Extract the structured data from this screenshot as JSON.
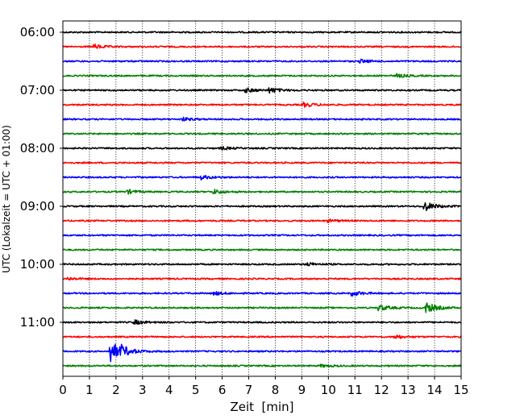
{
  "chart_data": {
    "type": "line",
    "title": "",
    "xlabel": "Zeit  [min]",
    "ylabel": "UTC (Lokalzeit = UTC + 01:00)",
    "xlim": [
      0,
      15
    ],
    "x_ticks": [
      "0",
      "1",
      "2",
      "3",
      "4",
      "5",
      "6",
      "7",
      "8",
      "9",
      "10",
      "11",
      "12",
      "13",
      "14",
      "15"
    ],
    "y_tick_labels": [
      "06:00",
      "07:00",
      "08:00",
      "09:00",
      "10:00",
      "11:00"
    ],
    "grid": "vertical dotted at each minute",
    "trace_interval_min": 15,
    "trace_color_cycle": [
      "#000000",
      "#ff0000",
      "#0000ff",
      "#008000"
    ],
    "traces": [
      {
        "start": "06:00",
        "color": "#000000",
        "events": []
      },
      {
        "start": "06:15",
        "color": "#ff0000",
        "events": [
          {
            "t": 1.2,
            "amp": 0.5
          }
        ]
      },
      {
        "start": "06:30",
        "color": "#0000ff",
        "events": [
          {
            "t": 11.2,
            "amp": 0.4
          }
        ]
      },
      {
        "start": "06:45",
        "color": "#008000",
        "events": [
          {
            "t": 12.6,
            "amp": 0.4
          }
        ]
      },
      {
        "start": "07:00",
        "color": "#000000",
        "events": [
          {
            "t": 6.9,
            "amp": 0.5
          },
          {
            "t": 7.8,
            "amp": 0.6
          }
        ]
      },
      {
        "start": "07:15",
        "color": "#ff0000",
        "events": [
          {
            "t": 9.1,
            "amp": 0.5
          }
        ]
      },
      {
        "start": "07:30",
        "color": "#0000ff",
        "events": [
          {
            "t": 4.5,
            "amp": 0.4
          }
        ]
      },
      {
        "start": "07:45",
        "color": "#008000",
        "events": []
      },
      {
        "start": "08:00",
        "color": "#000000",
        "events": [
          {
            "t": 6.0,
            "amp": 0.3
          }
        ]
      },
      {
        "start": "08:15",
        "color": "#ff0000",
        "events": []
      },
      {
        "start": "08:30",
        "color": "#0000ff",
        "events": [
          {
            "t": 5.2,
            "amp": 0.5
          }
        ]
      },
      {
        "start": "08:45",
        "color": "#008000",
        "events": [
          {
            "t": 2.4,
            "amp": 0.5
          },
          {
            "t": 5.7,
            "amp": 0.5
          }
        ]
      },
      {
        "start": "09:00",
        "color": "#000000",
        "events": [
          {
            "t": 13.6,
            "amp": 1.2
          }
        ]
      },
      {
        "start": "09:15",
        "color": "#ff0000",
        "events": [
          {
            "t": 10.0,
            "amp": 0.3
          }
        ]
      },
      {
        "start": "09:30",
        "color": "#0000ff",
        "events": []
      },
      {
        "start": "09:45",
        "color": "#008000",
        "events": []
      },
      {
        "start": "10:00",
        "color": "#000000",
        "events": [
          {
            "t": 9.2,
            "amp": 0.4
          }
        ]
      },
      {
        "start": "10:15",
        "color": "#ff0000",
        "events": [
          {
            "t": 0.2,
            "amp": 0.3
          }
        ]
      },
      {
        "start": "10:30",
        "color": "#0000ff",
        "events": [
          {
            "t": 5.7,
            "amp": 0.4
          },
          {
            "t": 10.9,
            "amp": 0.6
          }
        ]
      },
      {
        "start": "10:45",
        "color": "#008000",
        "events": [
          {
            "t": 11.9,
            "amp": 0.7
          },
          {
            "t": 13.7,
            "amp": 1.2
          }
        ]
      },
      {
        "start": "11:00",
        "color": "#000000",
        "events": [
          {
            "t": 2.7,
            "amp": 0.5
          }
        ]
      },
      {
        "start": "11:15",
        "color": "#ff0000",
        "events": [
          {
            "t": 12.5,
            "amp": 0.5
          }
        ]
      },
      {
        "start": "11:30",
        "color": "#0000ff",
        "events": [
          {
            "t": 1.8,
            "amp": 2.6
          },
          {
            "t": 2.2,
            "amp": 0.8
          }
        ]
      },
      {
        "start": "11:45",
        "color": "#008000",
        "events": [
          {
            "t": 9.7,
            "amp": 0.3
          }
        ]
      }
    ]
  }
}
